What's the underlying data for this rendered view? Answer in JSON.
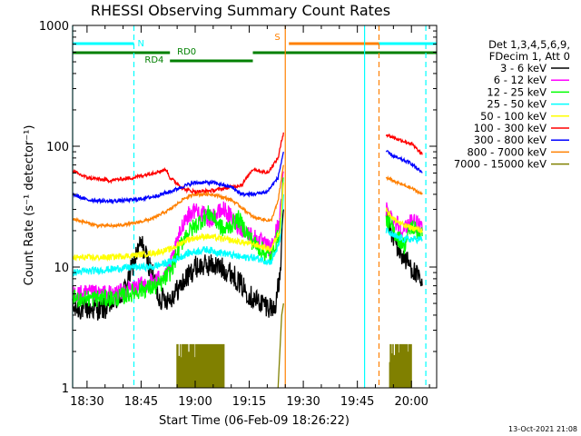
{
  "chart_data": {
    "type": "line",
    "title": "RHESSI Observing Summary Count Rates",
    "xlabel": "Start Time (06-Feb-09 18:26:22)",
    "ylabel": "Count Rate (s⁻¹ detector⁻¹)",
    "y_scale": "log",
    "xlim": [
      "18:26",
      "20:07"
    ],
    "ylim": [
      1,
      1000
    ],
    "x_ticks": [
      "18:30",
      "18:45",
      "19:00",
      "19:15",
      "19:30",
      "19:45",
      "20:00"
    ],
    "y_ticks": [
      {
        "value": 1,
        "label": "1"
      },
      {
        "value": 10,
        "label": "10"
      },
      {
        "value": 100,
        "label": "100"
      },
      {
        "value": 1000,
        "label": "1000"
      }
    ],
    "legend_header": [
      "Det 1,3,4,5,6,9,",
      "FDecim 1, Att 0"
    ],
    "legend_position": "right",
    "timestamp": "13-Oct-2021 21:08",
    "flag_labels": [
      {
        "text": "N",
        "color": "#00ffff"
      },
      {
        "text": "S",
        "color": "#ff8000"
      },
      {
        "text": "RD0",
        "color": "#008000"
      },
      {
        "text": "RD4",
        "color": "#008000"
      }
    ],
    "flag_bars": [
      {
        "name": "night",
        "color": "#00ffff",
        "row": "top",
        "segments": [
          [
            "18:26",
            "18:43"
          ],
          [
            "19:48",
            "20:07"
          ]
        ]
      },
      {
        "name": "saa",
        "color": "#ff8000",
        "row": "top",
        "segments": [
          [
            "19:26",
            "19:51"
          ]
        ]
      },
      {
        "name": "rd0",
        "color": "#008000",
        "row": "middle",
        "segments": [
          [
            "18:26",
            "18:53"
          ],
          [
            "19:16",
            "20:07"
          ]
        ]
      },
      {
        "name": "rd4",
        "color": "#008000",
        "row": "lower",
        "segments": [
          [
            "18:53",
            "19:16"
          ]
        ]
      }
    ],
    "vertical_lines": [
      {
        "time": "18:26",
        "color": "#00ffff",
        "style": "solid"
      },
      {
        "time": "18:43",
        "color": "#00ffff",
        "style": "dashed"
      },
      {
        "time": "19:25",
        "color": "#ff8000",
        "style": "solid"
      },
      {
        "time": "19:47",
        "color": "#00ffff",
        "style": "solid"
      },
      {
        "time": "19:51",
        "color": "#ff8000",
        "style": "dashed"
      },
      {
        "time": "20:04",
        "color": "#00ffff",
        "style": "dashed"
      }
    ],
    "series": [
      {
        "name": "3 - 6 keV",
        "color": "#000000",
        "noise": 0.38,
        "segments": [
          [
            [
              "18:26",
              4.5
            ],
            [
              "18:35",
              4.5
            ],
            [
              "18:40",
              6
            ],
            [
              "18:43",
              11
            ],
            [
              "18:45",
              16
            ],
            [
              "18:48",
              9
            ],
            [
              "18:50",
              5.5
            ],
            [
              "18:53",
              5.5
            ],
            [
              "18:56",
              7
            ],
            [
              "19:00",
              10
            ],
            [
              "19:05",
              10.5
            ],
            [
              "19:10",
              9
            ],
            [
              "19:13",
              7
            ],
            [
              "19:16",
              5.5
            ],
            [
              "19:22",
              4.5
            ],
            [
              "19:23.5",
              8
            ],
            [
              "19:24.5",
              30
            ]
          ],
          [
            [
              "19:53",
              28
            ],
            [
              "19:55",
              17
            ],
            [
              "19:57",
              13
            ],
            [
              "20:00",
              10
            ],
            [
              "20:03",
              7
            ]
          ]
        ]
      },
      {
        "name": "6 - 12 keV",
        "color": "#ff00ff",
        "noise": 0.3,
        "segments": [
          [
            [
              "18:26",
              6
            ],
            [
              "18:38",
              6
            ],
            [
              "18:45",
              7
            ],
            [
              "18:50",
              8
            ],
            [
              "18:53",
              10
            ],
            [
              "18:57",
              25
            ],
            [
              "19:00",
              30
            ],
            [
              "19:04",
              25
            ],
            [
              "19:08",
              30
            ],
            [
              "19:12",
              22
            ],
            [
              "19:16",
              18
            ],
            [
              "19:21",
              14
            ],
            [
              "19:23.5",
              25
            ],
            [
              "19:24.5",
              60
            ]
          ],
          [
            [
              "19:53",
              30
            ],
            [
              "19:55",
              25
            ],
            [
              "19:58",
              20
            ],
            [
              "20:00",
              25
            ],
            [
              "20:03",
              20
            ]
          ]
        ]
      },
      {
        "name": "12 - 25 keV",
        "color": "#00ff00",
        "noise": 0.3,
        "segments": [
          [
            [
              "18:26",
              5.5
            ],
            [
              "18:38",
              5.5
            ],
            [
              "18:45",
              6.5
            ],
            [
              "18:50",
              7
            ],
            [
              "18:53",
              9
            ],
            [
              "18:57",
              18
            ],
            [
              "19:00",
              22
            ],
            [
              "19:04",
              28
            ],
            [
              "19:08",
              20
            ],
            [
              "19:12",
              25
            ],
            [
              "19:16",
              16
            ],
            [
              "19:21",
              12
            ],
            [
              "19:23.5",
              20
            ],
            [
              "19:24.5",
              55
            ]
          ],
          [
            [
              "19:53",
              25
            ],
            [
              "19:55",
              20
            ],
            [
              "19:58",
              15
            ],
            [
              "20:00",
              22
            ],
            [
              "20:03",
              18
            ]
          ]
        ]
      },
      {
        "name": "25 - 50 keV",
        "color": "#00ffff",
        "noise": 0.12,
        "segments": [
          [
            [
              "18:26",
              9
            ],
            [
              "18:35",
              9.5
            ],
            [
              "18:43",
              10
            ],
            [
              "18:48",
              10
            ],
            [
              "18:53",
              11
            ],
            [
              "18:58",
              13
            ],
            [
              "19:03",
              14
            ],
            [
              "19:08",
              13
            ],
            [
              "19:13",
              12
            ],
            [
              "19:16",
              12
            ],
            [
              "19:21",
              11
            ],
            [
              "19:23.5",
              16
            ],
            [
              "19:24.5",
              40
            ]
          ],
          [
            [
              "19:53",
              20
            ],
            [
              "19:55",
              18
            ],
            [
              "19:58",
              17
            ],
            [
              "20:03",
              17
            ]
          ]
        ]
      },
      {
        "name": "50 - 100 keV",
        "color": "#ffff00",
        "noise": 0.1,
        "segments": [
          [
            [
              "18:26",
              12
            ],
            [
              "18:35",
              12
            ],
            [
              "18:43",
              12.5
            ],
            [
              "18:48",
              13
            ],
            [
              "18:53",
              14
            ],
            [
              "18:58",
              17
            ],
            [
              "19:03",
              18
            ],
            [
              "19:08",
              17
            ],
            [
              "19:13",
              16
            ],
            [
              "19:16",
              15.5
            ],
            [
              "19:21",
              14
            ],
            [
              "19:23.5",
              20
            ],
            [
              "19:24.5",
              50
            ]
          ],
          [
            [
              "19:53",
              30
            ],
            [
              "19:55",
              25
            ],
            [
              "19:58",
              22
            ],
            [
              "20:03",
              20
            ]
          ]
        ]
      },
      {
        "name": "100 - 300 keV",
        "color": "#ff0000",
        "noise": 0.06,
        "segments": [
          [
            [
              "18:26",
              62
            ],
            [
              "18:30",
              55
            ],
            [
              "18:36",
              52
            ],
            [
              "18:43",
              55
            ],
            [
              "18:48",
              60
            ],
            [
              "18:52",
              64
            ],
            [
              "18:53",
              55
            ],
            [
              "18:57",
              44
            ],
            [
              "19:00",
              42
            ],
            [
              "19:05",
              43
            ],
            [
              "19:10",
              46
            ],
            [
              "19:13",
              48
            ],
            [
              "19:16",
              65
            ],
            [
              "19:20",
              60
            ],
            [
              "19:23",
              80
            ],
            [
              "19:24.5",
              130
            ]
          ],
          [
            [
              "19:53",
              125
            ],
            [
              "19:56",
              115
            ],
            [
              "20:00",
              105
            ],
            [
              "20:03",
              85
            ]
          ]
        ]
      },
      {
        "name": "300 - 800 keV",
        "color": "#0000ff",
        "noise": 0.06,
        "segments": [
          [
            [
              "18:26",
              40
            ],
            [
              "18:30",
              36
            ],
            [
              "18:36",
              35
            ],
            [
              "18:43",
              36
            ],
            [
              "18:48",
              38
            ],
            [
              "18:53",
              42
            ],
            [
              "18:57",
              47
            ],
            [
              "19:00",
              50
            ],
            [
              "19:05",
              50
            ],
            [
              "19:10",
              46
            ],
            [
              "19:13",
              40
            ],
            [
              "19:16",
              40
            ],
            [
              "19:20",
              42
            ],
            [
              "19:23",
              55
            ],
            [
              "19:24.5",
              90
            ]
          ],
          [
            [
              "19:53",
              90
            ],
            [
              "19:56",
              80
            ],
            [
              "20:00",
              72
            ],
            [
              "20:03",
              60
            ]
          ]
        ]
      },
      {
        "name": "800 - 7000 keV",
        "color": "#ff8000",
        "noise": 0.05,
        "segments": [
          [
            [
              "18:26",
              25
            ],
            [
              "18:33",
              22
            ],
            [
              "18:38",
              22
            ],
            [
              "18:43",
              23
            ],
            [
              "18:48",
              25
            ],
            [
              "18:53",
              30
            ],
            [
              "18:57",
              37
            ],
            [
              "19:00",
              40
            ],
            [
              "19:05",
              40
            ],
            [
              "19:10",
              36
            ],
            [
              "19:13",
              31
            ],
            [
              "19:16",
              26
            ],
            [
              "19:21",
              24
            ],
            [
              "19:23",
              35
            ],
            [
              "19:24.5",
              70
            ]
          ],
          [
            [
              "19:53",
              55
            ],
            [
              "19:56",
              50
            ],
            [
              "20:00",
              45
            ],
            [
              "20:03",
              40
            ]
          ]
        ]
      },
      {
        "name": "7000 - 15000 keV",
        "color": "#808000",
        "noise": 0,
        "segments": [
          [
            [
              "19:23",
              1
            ],
            [
              "19:24",
              4
            ],
            [
              "19:24.5",
              5
            ]
          ]
        ]
      }
    ],
    "sparse_bursts": [
      {
        "series": "7000 - 15000 keV",
        "color": "#808000",
        "range": [
          "18:55",
          "19:08"
        ],
        "low": 1,
        "high": 2.3
      },
      {
        "series": "7000 - 15000 keV",
        "color": "#808000",
        "range": [
          "19:54",
          "20:00"
        ],
        "low": 1,
        "high": 2.3
      }
    ]
  }
}
